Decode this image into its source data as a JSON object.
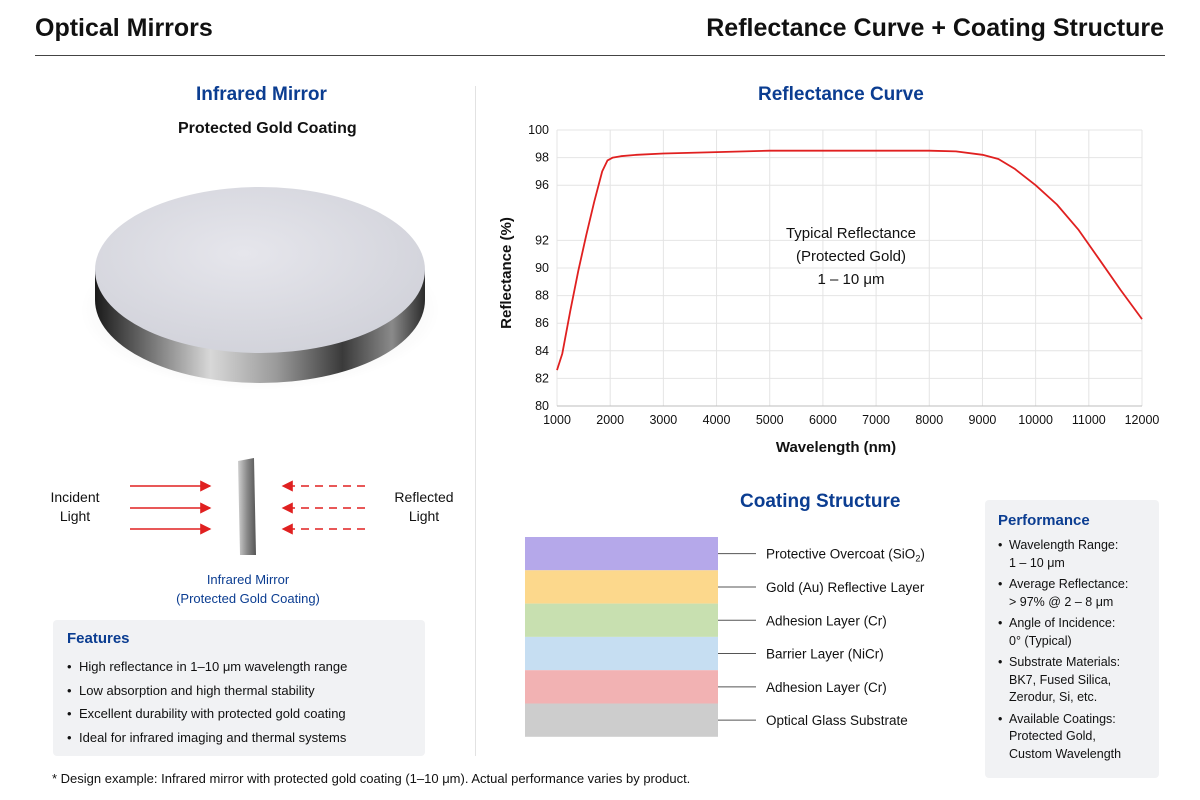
{
  "header": {
    "left_title": "Optical Mirrors",
    "right_title": "Reflectance Curve + Coating Structure"
  },
  "mirror_panel": {
    "title": "Infrared Mirror",
    "subtitle": "Protected Gold Coating",
    "incident_label_1": "Incident",
    "incident_label_2": "Light",
    "reflected_label_1": "Reflected",
    "reflected_label_2": "Light",
    "caption_1": "Infrared Mirror",
    "caption_2": "(Protected Gold Coating)"
  },
  "features": {
    "title": "Features",
    "items": [
      "High reflectance in 1–10 μm wavelength range",
      "Low absorption and high thermal stability",
      "Excellent durability with protected gold coating",
      "Ideal for infrared imaging and thermal systems"
    ]
  },
  "reflectance": {
    "title": "Reflectance Curve",
    "annotation_1": "Typical Reflectance",
    "annotation_2": "(Protected Gold)",
    "annotation_3": "1 – 10 μm"
  },
  "chart_data": {
    "type": "line",
    "title": "Reflectance Curve",
    "xlabel": "Wavelength (nm)",
    "ylabel": "Reflectance (%)",
    "xlim": [
      1000,
      12000
    ],
    "ylim": [
      80,
      100
    ],
    "x_ticks": [
      1000,
      2000,
      3000,
      4000,
      5000,
      6000,
      7000,
      8000,
      9000,
      10000,
      11000,
      12000
    ],
    "y_ticks": [
      80,
      82,
      84,
      86,
      88,
      90,
      92,
      96,
      98,
      100
    ],
    "grid": true,
    "line_color": "#e02020",
    "series": [
      {
        "x": [
          1000,
          1100,
          1250,
          1400,
          1550,
          1700,
          1850,
          1950,
          2050,
          2200,
          2500,
          3000,
          4000,
          5000,
          6000,
          7000,
          8000,
          8500,
          9000,
          9300,
          9600,
          10000,
          10400,
          10800,
          11200,
          11600,
          12000
        ],
        "y": [
          82.6,
          83.8,
          86.9,
          89.8,
          92.4,
          94.8,
          97.0,
          97.8,
          98.0,
          98.1,
          98.2,
          98.3,
          98.4,
          98.5,
          98.5,
          98.5,
          98.5,
          98.45,
          98.2,
          97.9,
          97.2,
          96.0,
          94.6,
          92.8,
          90.6,
          88.4,
          86.3
        ]
      }
    ]
  },
  "coating": {
    "title": "Coating Structure",
    "layers": [
      {
        "label": "Protective Overcoat (SiO",
        "sub": "2",
        "tail": ")",
        "color": "#b5a8ea"
      },
      {
        "label": "Gold (Au) Reflective Layer",
        "sub": "",
        "tail": "",
        "color": "#fcd88c"
      },
      {
        "label": "Adhesion Layer (Cr)",
        "sub": "",
        "tail": "",
        "color": "#c8e0b0"
      },
      {
        "label": "Barrier Layer (NiCr)",
        "sub": "",
        "tail": "",
        "color": "#c6def2"
      },
      {
        "label": "Adhesion Layer (Cr)",
        "sub": "",
        "tail": "",
        "color": "#f2b2b3"
      },
      {
        "label": "Optical Glass Substrate",
        "sub": "",
        "tail": "",
        "color": "#cdcdcd"
      }
    ]
  },
  "performance": {
    "title": "Performance",
    "items": [
      {
        "line1": "Wavelength Range:",
        "line2": "1 – 10 μm",
        "line3": ""
      },
      {
        "line1": "Average Reflectance:",
        "line2": "> 97% @ 2 – 8 μm",
        "line3": ""
      },
      {
        "line1": "Angle of Incidence:",
        "line2": "0° (Typical)",
        "line3": ""
      },
      {
        "line1": "Substrate Materials:",
        "line2": "BK7, Fused Silica,",
        "line3": "Zerodur, Si, etc."
      },
      {
        "line1": "Available Coatings:",
        "line2": "Protected Gold,",
        "line3": "Custom Wavelength"
      }
    ]
  },
  "footnote": "* Design example: Infrared mirror with protected gold coating (1–10 μm). Actual performance varies by product."
}
